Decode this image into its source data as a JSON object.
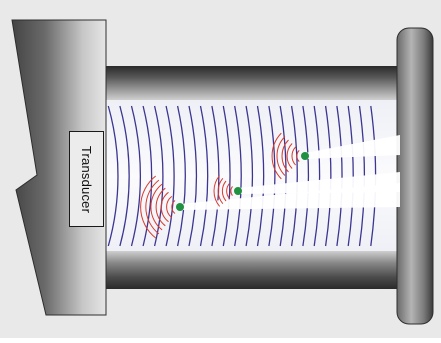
{
  "diagram": {
    "transducer_label": "Transducer",
    "colors": {
      "background": "#e9e9e9",
      "chamber": "#f7f8fb",
      "metal_dark": "#3a3a3a",
      "metal_light": "#d2d2d2",
      "wavefront": "#3c3591",
      "echo": "#d93a2c",
      "reflector": "#1f9140"
    },
    "reflectors": [
      {
        "name": "reflector-near"
      },
      {
        "name": "reflector-middle"
      },
      {
        "name": "reflector-far"
      }
    ]
  }
}
